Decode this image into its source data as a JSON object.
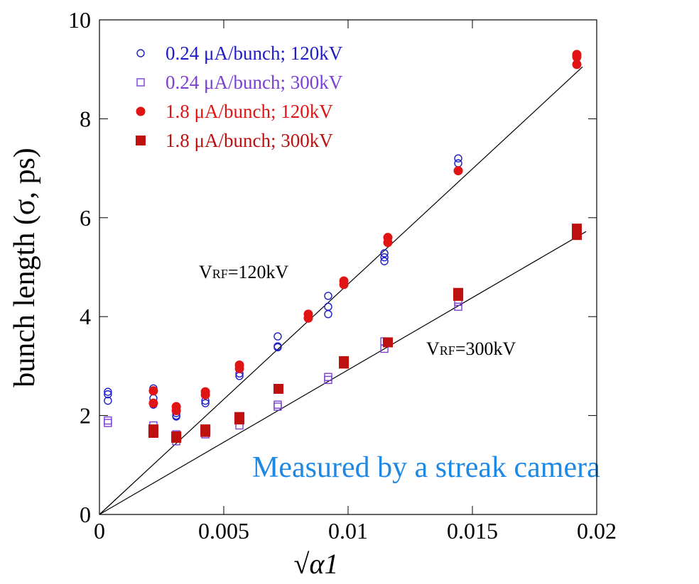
{
  "chart_data": {
    "type": "scatter",
    "ylabel": "bunch length (σ, ps)",
    "xlabel": "√α1",
    "xlim": [
      0,
      0.02
    ],
    "xticks": [
      0,
      0.005,
      0.01,
      0.015,
      0.02
    ],
    "ylim": [
      0,
      10
    ],
    "yticks": [
      0,
      2,
      4,
      6,
      8,
      10
    ],
    "legend": "upper left",
    "series": [
      {
        "name": "0.24 μA/bunch; 120kV",
        "color": "#1c1cc8",
        "marker": "circle-open",
        "x": [
          0.00034,
          0.00034,
          0.00034,
          0.00217,
          0.00217,
          0.00217,
          0.00309,
          0.00309,
          0.00309,
          0.00426,
          0.00426,
          0.00563,
          0.00563,
          0.00717,
          0.00717,
          0.00717,
          0.0092,
          0.0092,
          0.0092,
          0.01146,
          0.01146,
          0.01146,
          0.01443,
          0.01443
        ],
        "values": [
          2.48,
          2.43,
          2.3,
          2.55,
          2.35,
          2.22,
          2.05,
          2.0,
          1.98,
          2.3,
          2.25,
          2.85,
          2.8,
          3.6,
          3.4,
          3.38,
          4.42,
          4.2,
          4.05,
          5.28,
          5.2,
          5.12,
          7.2,
          7.1
        ]
      },
      {
        "name": "0.24 μA/bunch; 300kV",
        "color": "#7b3fd4",
        "marker": "square-open",
        "x": [
          0.00034,
          0.00034,
          0.00217,
          0.00217,
          0.00309,
          0.00309,
          0.00426,
          0.00426,
          0.00563,
          0.00717,
          0.00717,
          0.0092,
          0.0092,
          0.01146,
          0.01146,
          0.01443,
          0.01443
        ],
        "values": [
          1.9,
          1.85,
          1.8,
          1.7,
          1.62,
          1.48,
          1.65,
          1.62,
          1.8,
          2.22,
          2.18,
          2.78,
          2.72,
          3.5,
          3.35,
          4.3,
          4.2
        ]
      },
      {
        "name": "1.8 μA/bunch; 120kV",
        "color": "#e01414",
        "marker": "circle-filled",
        "x": [
          0.00217,
          0.00217,
          0.00309,
          0.00309,
          0.00426,
          0.00426,
          0.00563,
          0.00563,
          0.0084,
          0.0084,
          0.00983,
          0.00983,
          0.0116,
          0.0116,
          0.01443,
          0.0192,
          0.0192,
          0.0192
        ],
        "values": [
          2.5,
          2.25,
          2.18,
          2.1,
          2.48,
          2.42,
          3.02,
          2.95,
          4.05,
          3.97,
          4.72,
          4.65,
          5.6,
          5.5,
          6.95,
          9.3,
          9.25,
          9.1
        ]
      },
      {
        "name": "1.8 μA/bunch; 300kV",
        "color": "#bf1010",
        "marker": "square-filled",
        "x": [
          0.00217,
          0.00217,
          0.00309,
          0.00309,
          0.00426,
          0.00426,
          0.00563,
          0.00563,
          0.0072,
          0.00983,
          0.00983,
          0.0116,
          0.01443,
          0.01443,
          0.0192,
          0.0192
        ],
        "values": [
          1.72,
          1.65,
          1.58,
          1.55,
          1.72,
          1.67,
          1.97,
          1.92,
          2.54,
          3.1,
          3.05,
          3.48,
          4.48,
          4.42,
          5.78,
          5.65
        ]
      }
    ],
    "fit_lines": [
      {
        "x": [
          0,
          0.01943
        ],
        "values": [
          0,
          9.05
        ]
      },
      {
        "x": [
          0,
          0.01957
        ],
        "values": [
          0,
          5.72
        ]
      }
    ],
    "annotations": [
      {
        "parts": [
          "V",
          "RF",
          "=120kV"
        ]
      },
      {
        "parts": [
          "V",
          "RF",
          "=300kV"
        ]
      },
      {
        "parts": [
          "Measured by a streak camera"
        ]
      }
    ]
  }
}
